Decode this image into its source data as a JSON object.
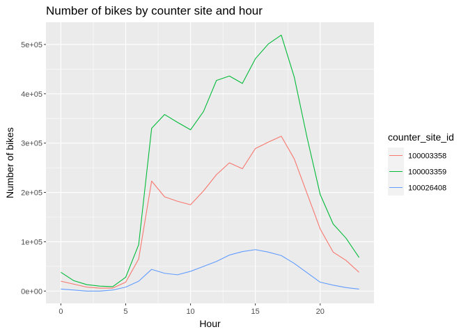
{
  "chart_data": {
    "type": "line",
    "title": "Number of bikes by counter site and hour",
    "xlabel": "Hour",
    "ylabel": "Number of bikes",
    "xlim": [
      -1.15,
      24.15
    ],
    "ylim": [
      -25000,
      545000
    ],
    "x_ticks": [
      0,
      5,
      10,
      15,
      20
    ],
    "x_tick_labels": [
      "0",
      "5",
      "10",
      "15",
      "20"
    ],
    "y_ticks": [
      0,
      100000,
      200000,
      300000,
      400000,
      500000
    ],
    "y_tick_labels": [
      "0e+00",
      "1e+05",
      "2e+05",
      "3e+05",
      "4e+05",
      "5e+05"
    ],
    "grid": true,
    "legend": {
      "title": "counter_site_id",
      "position": "right"
    },
    "x": [
      0,
      1,
      2,
      3,
      4,
      5,
      6,
      7,
      8,
      9,
      10,
      11,
      12,
      13,
      14,
      15,
      16,
      17,
      18,
      19,
      20,
      21,
      22,
      23
    ],
    "series": [
      {
        "name": "100003358",
        "color": "#F8766D",
        "values": [
          20000,
          14000,
          8000,
          6000,
          6000,
          18000,
          65000,
          223000,
          191000,
          182000,
          175000,
          203000,
          236000,
          260000,
          248000,
          289000,
          302000,
          314000,
          268000,
          197000,
          126000,
          79000,
          62000,
          38000
        ]
      },
      {
        "name": "100003359",
        "color": "#00BA38",
        "values": [
          38000,
          21000,
          13000,
          10000,
          9000,
          28000,
          94000,
          330000,
          358000,
          342000,
          327000,
          364000,
          427000,
          436000,
          421000,
          471000,
          501000,
          519000,
          434000,
          310000,
          196000,
          136000,
          107000,
          68000
        ]
      },
      {
        "name": "100026408",
        "color": "#619CFF",
        "values": [
          4000,
          2000,
          0,
          0,
          2000,
          8000,
          20000,
          44000,
          36000,
          33000,
          40000,
          50000,
          60000,
          73000,
          80000,
          84000,
          79000,
          72000,
          56000,
          37000,
          18000,
          12000,
          7000,
          4000
        ]
      }
    ]
  }
}
